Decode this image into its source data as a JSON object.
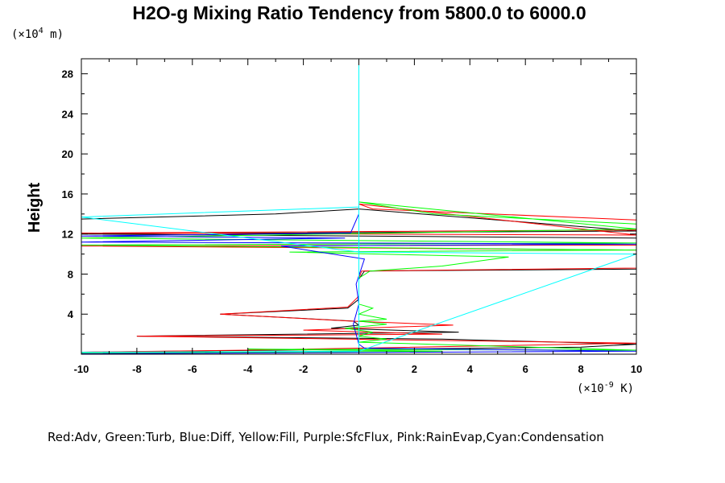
{
  "chart_data": {
    "type": "line",
    "title": "H2O-g Mixing Ratio Tendency from 5800.0 to 6000.0",
    "ylabel": "Height",
    "y_unit_prefix": "(×10",
    "y_unit_exp": "4",
    "y_unit_suffix": " m)",
    "x_unit_prefix": "(×10",
    "x_unit_exp": "-9",
    "x_unit_suffix": " K)",
    "legend_text": "Red:Adv, Green:Turb, Blue:Diff, Yellow:Fill, Purple:SfcFlux, Pink:RainEvap,Cyan:Condensation",
    "xlim": [
      -10,
      10
    ],
    "ylim": [
      0,
      29.5
    ],
    "x_ticks": [
      "-10",
      "-8",
      "-6",
      "-4",
      "-2",
      "0",
      "2",
      "4",
      "6",
      "8",
      "10"
    ],
    "y_ticks": [
      "4",
      "8",
      "12",
      "16",
      "20",
      "24",
      "28"
    ],
    "series": [
      {
        "color": "#000000",
        "points": [
          [
            -10,
            0.2
          ],
          [
            -3,
            0.4
          ],
          [
            8,
            0.7
          ],
          [
            10,
            1.0
          ],
          [
            3,
            1.5
          ],
          [
            -8,
            1.8
          ],
          [
            3.6,
            2.2
          ],
          [
            -1,
            2.6
          ],
          [
            0,
            2.9
          ],
          [
            -0.2,
            3.3
          ],
          [
            -5,
            4.0
          ],
          [
            -0.4,
            4.6
          ],
          [
            0,
            5.5
          ],
          [
            0,
            7.5
          ],
          [
            0.2,
            8.3
          ],
          [
            10,
            8.5
          ],
          [
            10,
            11.6
          ],
          [
            -10,
            12.0
          ],
          [
            10,
            12.3
          ],
          [
            0,
            14.5
          ],
          [
            -3,
            14.0
          ],
          [
            -10,
            13.5
          ]
        ]
      },
      {
        "color": "#ff0000",
        "points": [
          [
            -10,
            0.2
          ],
          [
            -4,
            0.4
          ],
          [
            10,
            1.1
          ],
          [
            -8,
            1.8
          ],
          [
            3,
            2.0
          ],
          [
            -2,
            2.4
          ],
          [
            3.4,
            2.9
          ],
          [
            -0.3,
            3.3
          ],
          [
            -5,
            4.0
          ],
          [
            -0.4,
            4.7
          ],
          [
            0,
            5.8
          ],
          [
            0,
            7.6
          ],
          [
            0.1,
            8.3
          ],
          [
            10,
            8.6
          ],
          [
            10,
            10.9
          ],
          [
            -10,
            10.8
          ],
          [
            10,
            10.4
          ],
          [
            10,
            12.4
          ],
          [
            -10,
            12.1
          ],
          [
            10,
            11.9
          ],
          [
            0,
            15.0
          ],
          [
            0.5,
            14.5
          ],
          [
            10,
            13.4
          ]
        ]
      },
      {
        "color": "#00ff00",
        "points": [
          [
            -10,
            0.1
          ],
          [
            3,
            0.3
          ],
          [
            -4,
            0.5
          ],
          [
            10,
            0.4
          ],
          [
            0,
            1.2
          ],
          [
            1,
            1.5
          ],
          [
            0,
            1.8
          ],
          [
            0.5,
            2.2
          ],
          [
            -0.5,
            2.6
          ],
          [
            1,
            3.0
          ],
          [
            0,
            3.3
          ],
          [
            1,
            3.5
          ],
          [
            0,
            4.0
          ],
          [
            0.5,
            4.6
          ],
          [
            0,
            5.0
          ],
          [
            0,
            7.6
          ],
          [
            0.4,
            8.3
          ],
          [
            3,
            8.8
          ],
          [
            5.4,
            9.7
          ],
          [
            -2.5,
            10.2
          ],
          [
            10,
            10.4
          ],
          [
            -10,
            10.9
          ],
          [
            10,
            11.1
          ],
          [
            -10,
            11.6
          ],
          [
            10,
            12.5
          ],
          [
            0,
            15.2
          ],
          [
            2.7,
            14.0
          ],
          [
            10,
            13.0
          ]
        ]
      },
      {
        "color": "#0000ff",
        "points": [
          [
            -10,
            0.05
          ],
          [
            10,
            0.3
          ],
          [
            0.2,
            0.6
          ],
          [
            0,
            1.0
          ],
          [
            -0.2,
            3.0
          ],
          [
            0,
            5.0
          ],
          [
            -0.1,
            7.0
          ],
          [
            0.2,
            9.5
          ],
          [
            -2.8,
            10.8
          ],
          [
            10,
            11.0
          ],
          [
            -10,
            11.2
          ],
          [
            -0.5,
            11.6
          ],
          [
            -10,
            11.8
          ],
          [
            -0.3,
            12.1
          ],
          [
            0,
            14.0
          ],
          [
            0,
            15.5
          ]
        ]
      },
      {
        "color": "#00ffff",
        "points": [
          [
            0,
            0
          ],
          [
            0,
            29.6
          ],
          [
            0,
            14.7
          ],
          [
            -10,
            13.7
          ],
          [
            0,
            10.2
          ],
          [
            10,
            10.0
          ],
          [
            0,
            0.3
          ],
          [
            -10,
            0.2
          ]
        ]
      }
    ]
  }
}
